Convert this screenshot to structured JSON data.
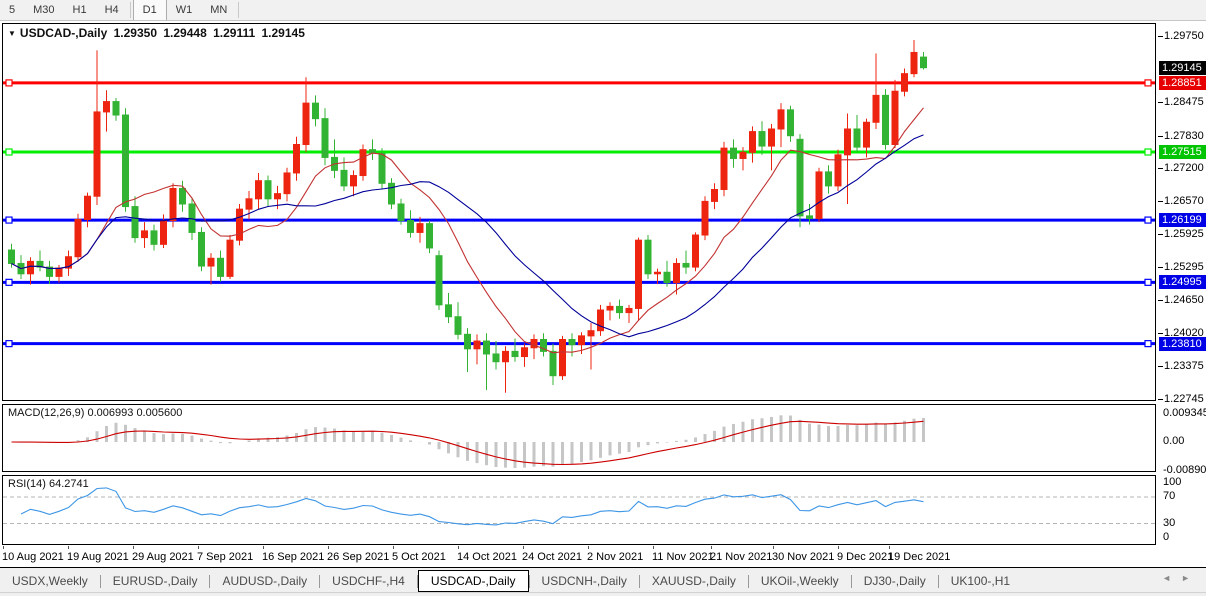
{
  "toolbar": {
    "timeframes": [
      {
        "label": "5",
        "active": false
      },
      {
        "label": "M30",
        "active": false
      },
      {
        "label": "H1",
        "active": false
      },
      {
        "label": "H4",
        "active": false
      },
      {
        "label": "D1",
        "active": true
      },
      {
        "label": "W1",
        "active": false
      },
      {
        "label": "MN",
        "active": false
      }
    ]
  },
  "chart": {
    "title": {
      "symbol": "USDCAD-,Daily",
      "open": "1.29350",
      "high": "1.29448",
      "low": "1.29111",
      "close": "1.29145"
    },
    "price_axis": {
      "min": 1.2272,
      "max": 1.2999,
      "ticks": [
        "1.29750",
        "1.28475",
        "1.27830",
        "1.27200",
        "1.26570",
        "1.25925",
        "1.25295",
        "1.24650",
        "1.24020",
        "1.23375",
        "1.22745"
      ],
      "boxes": [
        {
          "label": "1.29145",
          "color": "#000000"
        },
        {
          "label": "1.28851",
          "color": "#e60000"
        },
        {
          "label": "1.27515",
          "color": "#00c400"
        },
        {
          "label": "1.26199",
          "color": "#0000e6"
        },
        {
          "label": "1.24995",
          "color": "#0000e6"
        },
        {
          "label": "1.23810",
          "color": "#0000e6"
        }
      ]
    },
    "hlines": [
      {
        "price": 1.28851,
        "color": "#ff0000",
        "width": 3
      },
      {
        "price": 1.27515,
        "color": "#00ee00",
        "width": 3
      },
      {
        "price": 1.26199,
        "color": "#0000ff",
        "width": 3
      },
      {
        "price": 1.24995,
        "color": "#0000ff",
        "width": 3
      },
      {
        "price": 1.2381,
        "color": "#0000ff",
        "width": 3
      }
    ],
    "colors": {
      "up": "#ed2410",
      "down": "#33b333",
      "ma_fast": "#c23232",
      "ma_slow": "#000099"
    },
    "ma_fast_period": 10,
    "ma_slow_period": 21,
    "candles": [
      [
        1.2562,
        1.2574,
        1.2528,
        1.2536
      ],
      [
        1.2536,
        1.2552,
        1.2506,
        1.2516
      ],
      [
        1.2516,
        1.2548,
        1.2495,
        1.254
      ],
      [
        1.254,
        1.2561,
        1.2521,
        1.2529
      ],
      [
        1.2529,
        1.2541,
        1.2496,
        1.2511
      ],
      [
        1.2511,
        1.2533,
        1.2499,
        1.2527
      ],
      [
        1.2527,
        1.2561,
        1.2512,
        1.2549
      ],
      [
        1.2549,
        1.2632,
        1.2539,
        1.2621
      ],
      [
        1.2621,
        1.2673,
        1.2606,
        1.2666
      ],
      [
        1.2666,
        1.2948,
        1.2649,
        1.2829
      ],
      [
        1.2829,
        1.2871,
        1.2791,
        1.2849
      ],
      [
        1.2849,
        1.2856,
        1.2812,
        1.2823
      ],
      [
        1.2823,
        1.2836,
        1.2636,
        1.2646
      ],
      [
        1.2646,
        1.2666,
        1.2576,
        1.2586
      ],
      [
        1.2586,
        1.2616,
        1.2566,
        1.2599
      ],
      [
        1.2599,
        1.2611,
        1.2561,
        1.2573
      ],
      [
        1.2573,
        1.2631,
        1.2566,
        1.2619
      ],
      [
        1.2619,
        1.2691,
        1.2606,
        1.2681
      ],
      [
        1.2681,
        1.2696,
        1.2636,
        1.2651
      ],
      [
        1.2651,
        1.2661,
        1.2581,
        1.2596
      ],
      [
        1.2596,
        1.2606,
        1.2521,
        1.2531
      ],
      [
        1.2531,
        1.2556,
        1.2495,
        1.2546
      ],
      [
        1.2546,
        1.2561,
        1.2501,
        1.2511
      ],
      [
        1.2511,
        1.2591,
        1.2506,
        1.2581
      ],
      [
        1.2581,
        1.2651,
        1.2571,
        1.2641
      ],
      [
        1.2641,
        1.2676,
        1.2621,
        1.2661
      ],
      [
        1.2661,
        1.2711,
        1.2641,
        1.2696
      ],
      [
        1.2696,
        1.2706,
        1.2646,
        1.2661
      ],
      [
        1.2661,
        1.2686,
        1.2641,
        1.2671
      ],
      [
        1.2671,
        1.2721,
        1.2656,
        1.2711
      ],
      [
        1.2711,
        1.2781,
        1.2696,
        1.2766
      ],
      [
        1.2766,
        1.2896,
        1.2751,
        1.2846
      ],
      [
        1.2846,
        1.2861,
        1.2801,
        1.2816
      ],
      [
        1.2816,
        1.2836,
        1.2726,
        1.2741
      ],
      [
        1.2741,
        1.2776,
        1.2701,
        1.2716
      ],
      [
        1.2716,
        1.2741,
        1.2676,
        1.2686
      ],
      [
        1.2686,
        1.2716,
        1.2666,
        1.2706
      ],
      [
        1.2706,
        1.2766,
        1.2696,
        1.2756
      ],
      [
        1.2756,
        1.2776,
        1.2736,
        1.2749
      ],
      [
        1.2749,
        1.2759,
        1.2681,
        1.2691
      ],
      [
        1.2691,
        1.2701,
        1.2641,
        1.2651
      ],
      [
        1.2651,
        1.2661,
        1.2611,
        1.2619
      ],
      [
        1.2619,
        1.2639,
        1.2586,
        1.2596
      ],
      [
        1.2596,
        1.2626,
        1.2576,
        1.2613
      ],
      [
        1.2613,
        1.2619,
        1.2556,
        1.2566
      ],
      [
        1.2551,
        1.2561,
        1.2446,
        1.2456
      ],
      [
        1.2456,
        1.2479,
        1.2421,
        1.2433
      ],
      [
        1.2433,
        1.2461,
        1.2389,
        1.2399
      ],
      [
        1.2399,
        1.2411,
        1.2326,
        1.2371
      ],
      [
        1.2371,
        1.2399,
        1.2341,
        1.2386
      ],
      [
        1.2386,
        1.2401,
        1.2291,
        1.2361
      ],
      [
        1.2361,
        1.2386,
        1.2331,
        1.2346
      ],
      [
        1.2346,
        1.2376,
        1.2286,
        1.2366
      ],
      [
        1.2366,
        1.2391,
        1.2346,
        1.2356
      ],
      [
        1.2356,
        1.2381,
        1.2336,
        1.2373
      ],
      [
        1.2373,
        1.2399,
        1.2351,
        1.2389
      ],
      [
        1.2389,
        1.2401,
        1.2356,
        1.2366
      ],
      [
        1.2366,
        1.2381,
        1.2301,
        1.2319
      ],
      [
        1.2319,
        1.2396,
        1.2311,
        1.2389
      ],
      [
        1.2389,
        1.2401,
        1.2356,
        1.2379
      ],
      [
        1.2379,
        1.2403,
        1.2361,
        1.2396
      ],
      [
        1.2396,
        1.2421,
        1.2331,
        1.2406
      ],
      [
        1.2406,
        1.2456,
        1.2396,
        1.2446
      ],
      [
        1.2446,
        1.2461,
        1.2426,
        1.2453
      ],
      [
        1.2453,
        1.2466,
        1.2429,
        1.2441
      ],
      [
        1.2441,
        1.2456,
        1.2421,
        1.2449
      ],
      [
        1.2449,
        1.2586,
        1.2426,
        1.2581
      ],
      [
        1.2581,
        1.2591,
        1.2506,
        1.2516
      ],
      [
        1.2516,
        1.2526,
        1.2496,
        1.2519
      ],
      [
        1.2519,
        1.2541,
        1.2491,
        1.2499
      ],
      [
        1.2499,
        1.2546,
        1.2476,
        1.2536
      ],
      [
        1.2536,
        1.2561,
        1.2516,
        1.2529
      ],
      [
        1.2529,
        1.2596,
        1.2521,
        1.2591
      ],
      [
        1.2591,
        1.2666,
        1.2581,
        1.2656
      ],
      [
        1.2656,
        1.2691,
        1.2641,
        1.2679
      ],
      [
        1.2679,
        1.2771,
        1.2666,
        1.2759
      ],
      [
        1.2759,
        1.2776,
        1.2721,
        1.2739
      ],
      [
        1.2739,
        1.2761,
        1.2716,
        1.2751
      ],
      [
        1.2751,
        1.2801,
        1.2731,
        1.2791
      ],
      [
        1.2791,
        1.2811,
        1.2746,
        1.2763
      ],
      [
        1.2763,
        1.2806,
        1.2716,
        1.2796
      ],
      [
        1.2796,
        1.2846,
        1.2761,
        1.2833
      ],
      [
        1.2833,
        1.2841,
        1.2771,
        1.2783
      ],
      [
        1.2776,
        1.2786,
        1.2606,
        1.2628
      ],
      [
        1.2628,
        1.2651,
        1.2611,
        1.2623
      ],
      [
        1.2623,
        1.2721,
        1.2616,
        1.2713
      ],
      [
        1.2713,
        1.2726,
        1.2671,
        1.2686
      ],
      [
        1.2686,
        1.2756,
        1.2676,
        1.2746
      ],
      [
        1.2746,
        1.2826,
        1.2651,
        1.2796
      ],
      [
        1.2796,
        1.2823,
        1.2751,
        1.2761
      ],
      [
        1.2761,
        1.2816,
        1.2741,
        1.2809
      ],
      [
        1.2809,
        1.2942,
        1.2796,
        1.2861
      ],
      [
        1.2861,
        1.2873,
        1.2756,
        1.2766
      ],
      [
        1.2766,
        1.2891,
        1.2759,
        1.2869
      ],
      [
        1.2869,
        1.2913,
        1.2859,
        1.2903
      ],
      [
        1.2903,
        1.2968,
        1.2896,
        1.2944
      ],
      [
        1.2935,
        1.29448,
        1.29111,
        1.29145
      ]
    ]
  },
  "macd": {
    "label": "MACD(12,26,9)",
    "value_main": "0.006993",
    "value_signal": "0.005600",
    "axis": [
      "0.009345",
      "0.00",
      "-0.008907"
    ],
    "range": {
      "max": 0.009345,
      "min": -0.008907
    },
    "histogram_color": "#c6c6c6",
    "signal_color": "#cc0000"
  },
  "rsi": {
    "label": "RSI(14)",
    "value": "64.2741",
    "axis": [
      "100",
      "70",
      "30",
      "0"
    ],
    "levels": [
      70,
      30
    ],
    "line_color": "#3e96e6",
    "level_color": "#b4b4b4"
  },
  "dates": [
    "10 Aug 2021",
    "19 Aug 2021",
    "29 Aug 2021",
    "7 Sep 2021",
    "16 Sep 2021",
    "26 Sep 2021",
    "5 Oct 2021",
    "14 Oct 2021",
    "24 Oct 2021",
    "2 Nov 2021",
    "11 Nov 2021",
    "21 Nov 2021",
    "30 Nov 2021",
    "9 Dec 2021",
    "19 Dec 2021"
  ],
  "tabs": {
    "items": [
      {
        "label": "USDX,Weekly",
        "active": false
      },
      {
        "label": "EURUSD-,Daily",
        "active": false
      },
      {
        "label": "AUDUSD-,Daily",
        "active": false
      },
      {
        "label": "USDCHF-,H4",
        "active": false
      },
      {
        "label": "USDCAD-,Daily",
        "active": true
      },
      {
        "label": "USDCNH-,Daily",
        "active": false
      },
      {
        "label": "XAUUSD-,Daily",
        "active": false
      },
      {
        "label": "UKOil-,Weekly",
        "active": false
      },
      {
        "label": "DJ30-,Daily",
        "active": false
      },
      {
        "label": "UK100-,H1",
        "active": false
      }
    ],
    "scroll_left": "◄",
    "scroll_right": "►"
  }
}
